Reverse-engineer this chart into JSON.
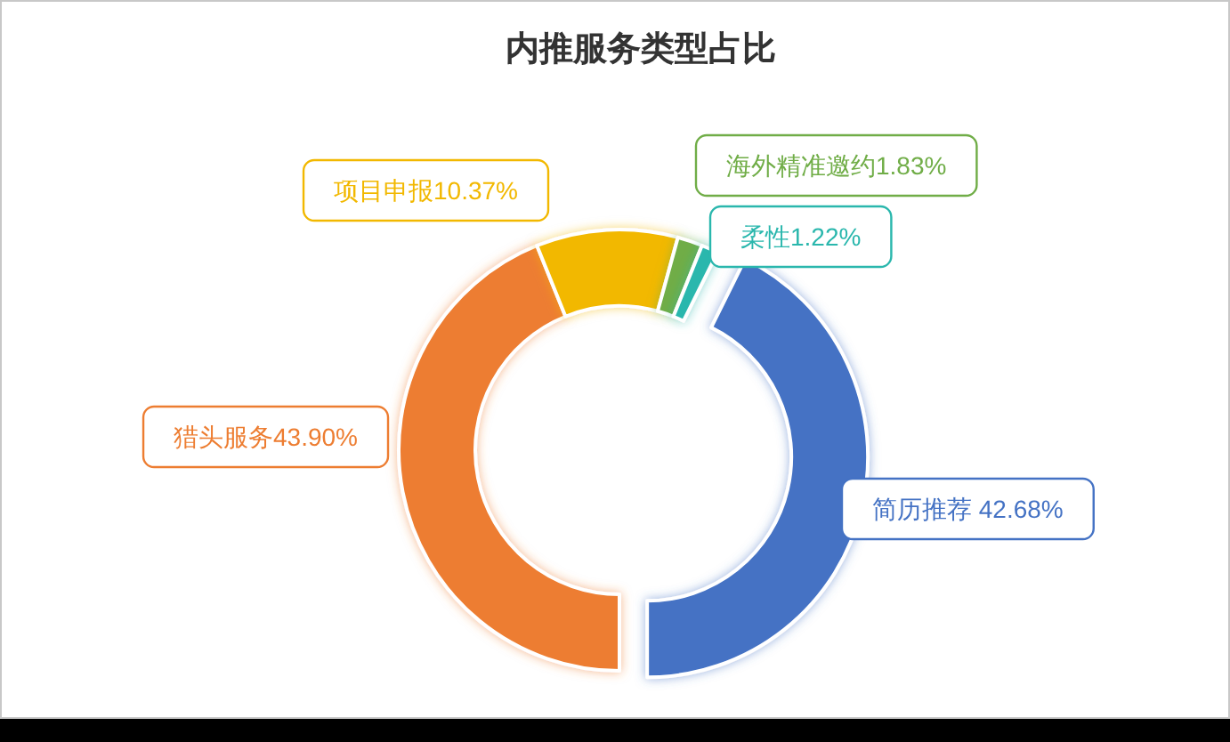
{
  "chart_data": {
    "type": "donut",
    "title": "内推服务类型占比",
    "categories": [
      "简历推荐",
      "猎头服务",
      "项目申报",
      "海外精准邀约",
      "柔性"
    ],
    "values": [
      42.68,
      43.9,
      10.37,
      1.83,
      1.22
    ],
    "colors": [
      "#4472c4",
      "#ed7d31",
      "#f2b800",
      "#70ad47",
      "#2ab7ad"
    ],
    "value_labels": [
      " 42.68%",
      "43.90%",
      "10.37%",
      "1.83%",
      "1.22%"
    ]
  }
}
